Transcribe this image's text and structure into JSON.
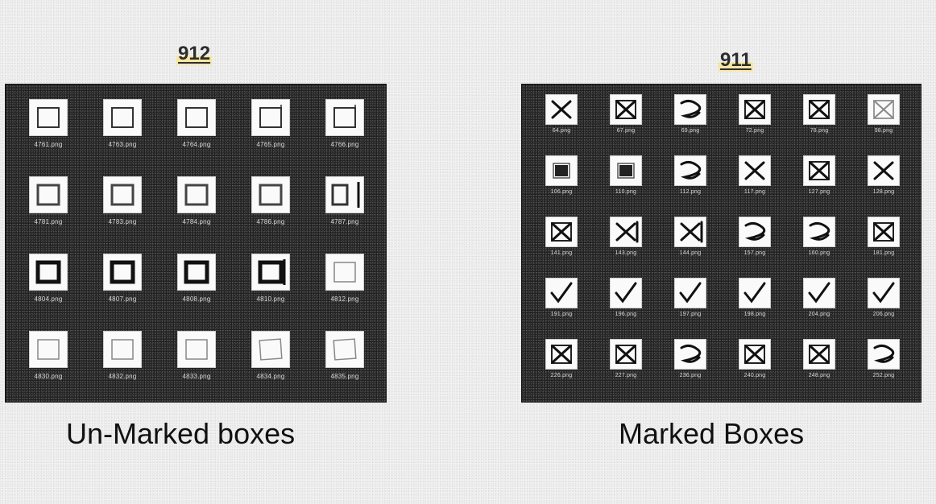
{
  "figure": {
    "left_ref": "912",
    "right_ref": "911",
    "left_caption": "Un-Marked boxes",
    "right_caption": "Marked Boxes"
  },
  "unmarked": [
    {
      "file": "4761.png",
      "style": "thin"
    },
    {
      "file": "4763.png",
      "style": "thin"
    },
    {
      "file": "4764.png",
      "style": "thin"
    },
    {
      "file": "4765.png",
      "style": "thin-open"
    },
    {
      "file": "4766.png",
      "style": "thin-open"
    },
    {
      "file": "4781.png",
      "style": "medium"
    },
    {
      "file": "4783.png",
      "style": "medium"
    },
    {
      "file": "4784.png",
      "style": "medium"
    },
    {
      "file": "4786.png",
      "style": "medium"
    },
    {
      "file": "4787.png",
      "style": "bar"
    },
    {
      "file": "4804.png",
      "style": "thick"
    },
    {
      "file": "4807.png",
      "style": "thick"
    },
    {
      "file": "4808.png",
      "style": "thick"
    },
    {
      "file": "4810.png",
      "style": "thick-bar"
    },
    {
      "file": "4812.png",
      "style": "faint"
    },
    {
      "file": "4830.png",
      "style": "faint"
    },
    {
      "file": "4832.png",
      "style": "faint"
    },
    {
      "file": "4833.png",
      "style": "faint"
    },
    {
      "file": "4834.png",
      "style": "faint-skew"
    },
    {
      "file": "4835.png",
      "style": "faint-skew"
    }
  ],
  "marked": [
    {
      "file": "64.png",
      "style": "x"
    },
    {
      "file": "67.png",
      "style": "x-box"
    },
    {
      "file": "69.png",
      "style": "scribble"
    },
    {
      "file": "72.png",
      "style": "x-box"
    },
    {
      "file": "78.png",
      "style": "x-box"
    },
    {
      "file": "98.png",
      "style": "faint-x"
    },
    {
      "file": "106.png",
      "style": "fill"
    },
    {
      "file": "110.png",
      "style": "fill"
    },
    {
      "file": "112.png",
      "style": "scribble"
    },
    {
      "file": "117.png",
      "style": "x"
    },
    {
      "file": "127.png",
      "style": "x-box"
    },
    {
      "file": "128.png",
      "style": "x"
    },
    {
      "file": "141.png",
      "style": "x-box"
    },
    {
      "file": "143.png",
      "style": "x-open"
    },
    {
      "file": "144.png",
      "style": "x-open"
    },
    {
      "file": "157.png",
      "style": "scribble"
    },
    {
      "file": "160.png",
      "style": "scribble"
    },
    {
      "file": "181.png",
      "style": "x-box"
    },
    {
      "file": "191.png",
      "style": "check"
    },
    {
      "file": "196.png",
      "style": "check"
    },
    {
      "file": "197.png",
      "style": "check"
    },
    {
      "file": "198.png",
      "style": "check"
    },
    {
      "file": "204.png",
      "style": "check"
    },
    {
      "file": "206.png",
      "style": "check"
    },
    {
      "file": "226.png",
      "style": "x-box"
    },
    {
      "file": "227.png",
      "style": "x-box"
    },
    {
      "file": "236.png",
      "style": "scribble"
    },
    {
      "file": "240.png",
      "style": "x-box"
    },
    {
      "file": "248.png",
      "style": "x-box"
    },
    {
      "file": "252.png",
      "style": "scribble"
    }
  ]
}
